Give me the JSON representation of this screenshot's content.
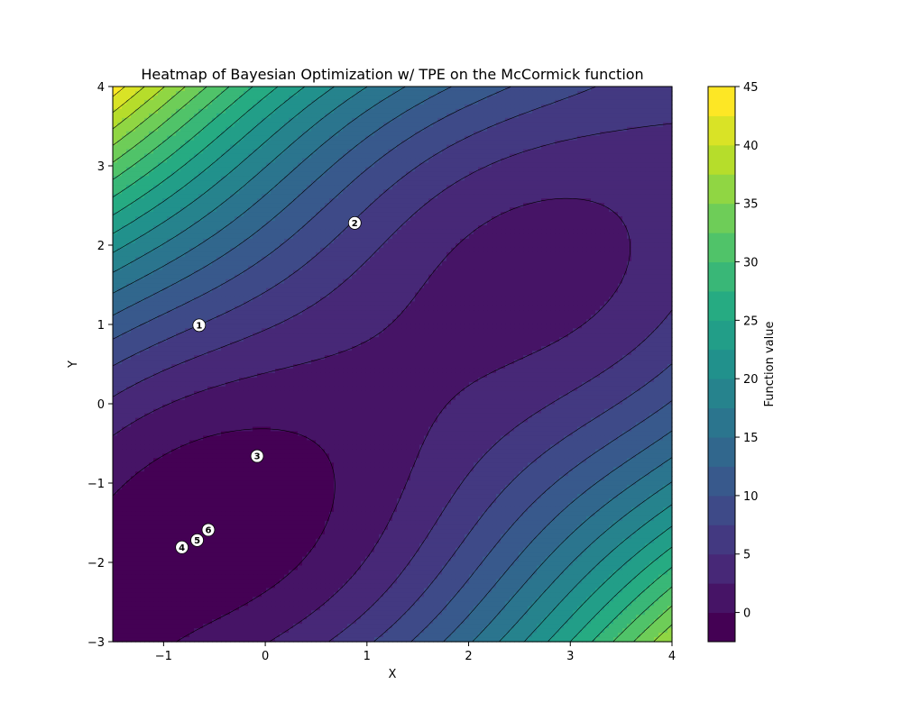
{
  "chart_data": {
    "type": "heatmap",
    "title": "Heatmap of Bayesian Optimization w/ TPE on the McCormick function",
    "xlabel": "X",
    "ylabel": "Y",
    "xlim": [
      -1.5,
      4
    ],
    "ylim": [
      -3,
      4
    ],
    "x_ticks": [
      "−1",
      "0",
      "1",
      "2",
      "3",
      "4"
    ],
    "x_tick_values": [
      -1,
      0,
      1,
      2,
      3,
      4
    ],
    "y_ticks": [
      "−3",
      "−2",
      "−1",
      "0",
      "1",
      "2",
      "3",
      "4"
    ],
    "y_tick_values": [
      -3,
      -2,
      -1,
      0,
      1,
      2,
      3,
      4
    ],
    "function": "sin(x + y) + (x - y)^2 - 1.5x + 2.5y + 1",
    "levels": [
      -2.5,
      0,
      2.5,
      5,
      7.5,
      10,
      12.5,
      15,
      17.5,
      20,
      22.5,
      25,
      27.5,
      30,
      32.5,
      35,
      37.5,
      40,
      42.5,
      45
    ],
    "colormap": "viridis",
    "colorbar": {
      "label": "Function value",
      "ticks": [
        "0",
        "5",
        "10",
        "15",
        "20",
        "25",
        "30",
        "35",
        "40",
        "45"
      ],
      "tick_values": [
        0,
        5,
        10,
        15,
        20,
        25,
        30,
        35,
        40,
        45
      ]
    },
    "points": [
      {
        "label": "1",
        "x": -0.65,
        "y": 0.99
      },
      {
        "label": "2",
        "x": 0.88,
        "y": 2.28
      },
      {
        "label": "3",
        "x": -0.08,
        "y": -0.66
      },
      {
        "label": "4",
        "x": -0.82,
        "y": -1.81
      },
      {
        "label": "5",
        "x": -0.67,
        "y": -1.72
      },
      {
        "label": "6",
        "x": -0.56,
        "y": -1.59
      }
    ],
    "grid": false
  }
}
